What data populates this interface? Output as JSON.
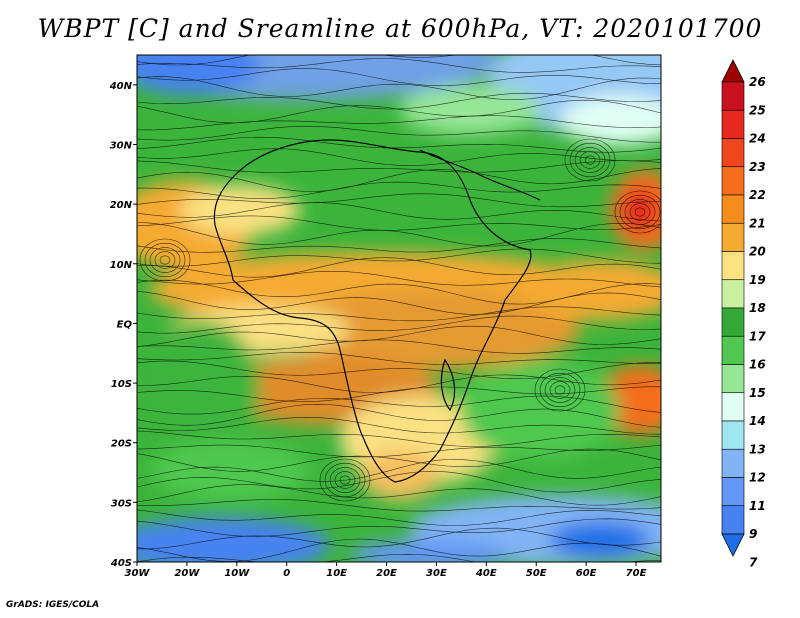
{
  "title": "WBPT [C] and Sreamline at 600hPa, VT: 2020101700",
  "credit": "GrADS: IGES/COLA",
  "map": {
    "lon_range": [
      -30,
      75
    ],
    "lat_range": [
      -40,
      45
    ],
    "lat_ticks": [
      {
        "value": 40,
        "label": "40N"
      },
      {
        "value": 30,
        "label": "30N"
      },
      {
        "value": 20,
        "label": "20N"
      },
      {
        "value": 10,
        "label": "10N"
      },
      {
        "value": 0,
        "label": "EQ"
      },
      {
        "value": -10,
        "label": "10S"
      },
      {
        "value": -20,
        "label": "20S"
      },
      {
        "value": -30,
        "label": "30S"
      },
      {
        "value": -40,
        "label": "40S"
      }
    ],
    "lon_ticks": [
      {
        "value": -30,
        "label": "30W"
      },
      {
        "value": -20,
        "label": "20W"
      },
      {
        "value": -10,
        "label": "10W"
      },
      {
        "value": 0,
        "label": "0"
      },
      {
        "value": 10,
        "label": "10E"
      },
      {
        "value": 20,
        "label": "20E"
      },
      {
        "value": 30,
        "label": "30E"
      },
      {
        "value": 40,
        "label": "40E"
      },
      {
        "value": 50,
        "label": "50E"
      },
      {
        "value": 60,
        "label": "60E"
      },
      {
        "value": 70,
        "label": "70E"
      }
    ]
  },
  "colorbar": {
    "levels": [
      "26",
      "25",
      "24",
      "23",
      "22",
      "21",
      "20",
      "19",
      "18",
      "17",
      "16",
      "15",
      "14",
      "13",
      "12",
      "11",
      "9",
      "7"
    ],
    "colors": [
      "#a00000",
      "#c8101e",
      "#e6281e",
      "#f0461e",
      "#f56e1e",
      "#f58c1e",
      "#f5aa32",
      "#fae182",
      "#c8f0a0",
      "#36a838",
      "#50c850",
      "#96e696",
      "#e1fff5",
      "#a0e6f0",
      "#82b4f5",
      "#6496f5",
      "#4682f0",
      "#1e6ee6"
    ]
  }
}
